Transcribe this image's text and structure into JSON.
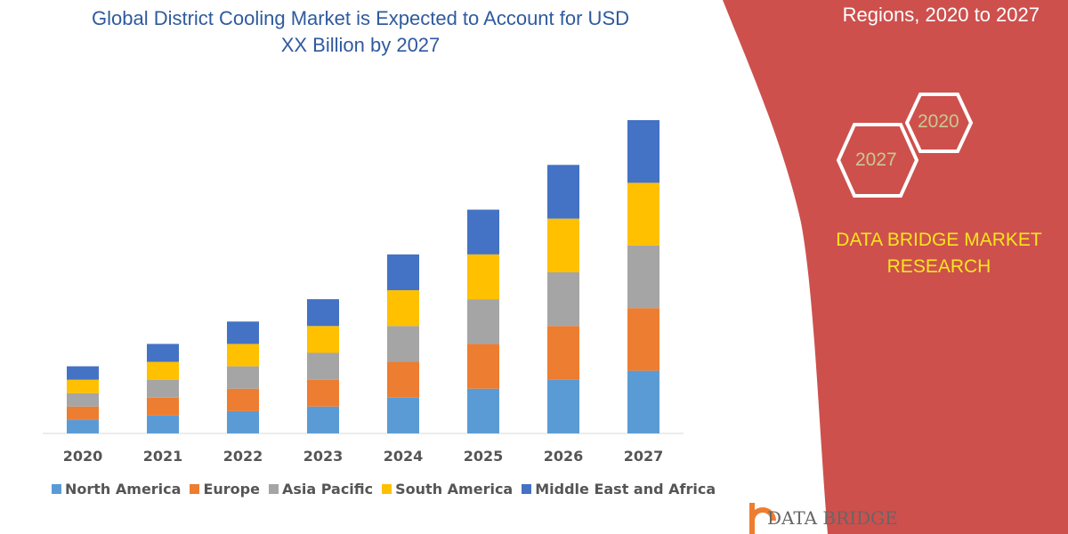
{
  "header": {
    "title_line1": "Global District Cooling Market is Expected to Account for USD",
    "title_line2": "XX Billion by 2027",
    "regions_text": "Regions, 2020 to 2027"
  },
  "side_panel": {
    "hex_start": "2020",
    "hex_end": "2027",
    "brand_line1": "DATA BRIDGE MARKET",
    "brand_line2": "RESEARCH",
    "panel_color": "#cd504d"
  },
  "footer": {
    "logo_text": "DATA BRIDGE"
  },
  "chart_data": {
    "type": "bar",
    "stacked": true,
    "title": "Global District Cooling Market is Expected to Account for USD XX Billion by 2027",
    "xlabel": "",
    "ylabel": "",
    "ylim": [
      0,
      350
    ],
    "grid": false,
    "legend_placement": "bottom",
    "categories": [
      "2020",
      "2021",
      "2022",
      "2023",
      "2024",
      "2025",
      "2026",
      "2027"
    ],
    "series": [
      {
        "name": "North America",
        "color": "#5b9bd5",
        "values": [
          15,
          20,
          25,
          30,
          40,
          50,
          60,
          70
        ]
      },
      {
        "name": "Europe",
        "color": "#ed7d31",
        "values": [
          15,
          20,
          25,
          30,
          40,
          50,
          60,
          70
        ]
      },
      {
        "name": "Asia Pacific",
        "color": "#a5a5a5",
        "values": [
          15,
          20,
          25,
          30,
          40,
          50,
          60,
          70
        ]
      },
      {
        "name": "South America",
        "color": "#ffc000",
        "values": [
          15,
          20,
          25,
          30,
          40,
          50,
          60,
          70
        ]
      },
      {
        "name": "Middle East and Africa",
        "color": "#4472c4",
        "values": [
          15,
          20,
          25,
          30,
          40,
          50,
          60,
          70
        ]
      }
    ]
  }
}
